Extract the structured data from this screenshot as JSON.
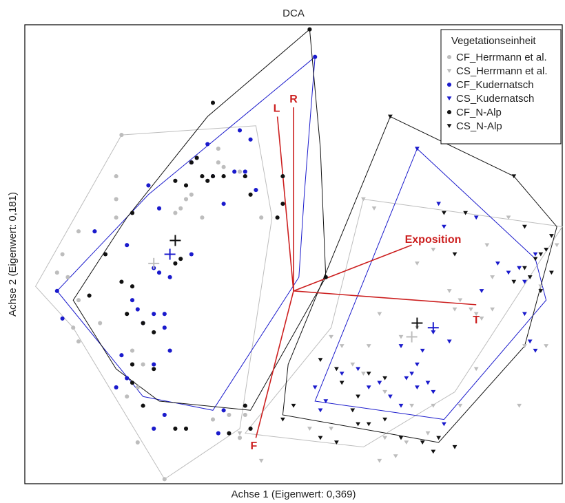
{
  "chart_data": {
    "type": "scatter",
    "title": "DCA",
    "xlabel": "Achse 1 (Eigenwert: 0,369)",
    "ylabel": "Achse 2 (Eigenwert: 0,181)",
    "grid": false,
    "axes_ticks_shown": false,
    "legend_position": "top-right",
    "legend_title": "Vegetationseinheit",
    "xlim": [
      0,
      100
    ],
    "ylim": [
      0,
      100
    ],
    "series": [
      {
        "name": "CF_Herrmann et al.",
        "marker": "circle",
        "color": "#bdbdbd",
        "points": [
          [
            18,
            76
          ],
          [
            17,
            67
          ],
          [
            17,
            62
          ],
          [
            17,
            58
          ],
          [
            29,
            60
          ],
          [
            30,
            62
          ],
          [
            28,
            59
          ],
          [
            33,
            58
          ],
          [
            44,
            58
          ],
          [
            7,
            50
          ],
          [
            8,
            45
          ],
          [
            10,
            40
          ],
          [
            9,
            34
          ],
          [
            10,
            31
          ],
          [
            14,
            35
          ],
          [
            20,
            29
          ],
          [
            20,
            26
          ],
          [
            22,
            26
          ],
          [
            21,
            21
          ],
          [
            19,
            19
          ],
          [
            24,
            12
          ],
          [
            21,
            9
          ],
          [
            26,
            1
          ],
          [
            35,
            14
          ],
          [
            38,
            15
          ],
          [
            40,
            10
          ],
          [
            41,
            15
          ],
          [
            36,
            73
          ],
          [
            40,
            68
          ],
          [
            36,
            70
          ],
          [
            37,
            69
          ],
          [
            31,
            63
          ],
          [
            6,
            46
          ],
          [
            10,
            55
          ]
        ]
      },
      {
        "name": "CS_Herrmann et al.",
        "marker": "triangle",
        "color": "#bdbdbd",
        "points": [
          [
            63,
            62
          ],
          [
            65,
            60
          ],
          [
            73,
            48
          ],
          [
            76,
            51
          ],
          [
            79,
            42
          ],
          [
            87,
            45
          ],
          [
            86,
            52
          ],
          [
            90,
            58
          ],
          [
            92,
            47
          ],
          [
            96,
            43
          ],
          [
            99,
            52
          ],
          [
            66,
            37
          ],
          [
            70,
            32
          ],
          [
            73,
            34
          ],
          [
            80,
            38
          ],
          [
            81,
            40
          ],
          [
            83,
            38
          ],
          [
            84,
            37
          ],
          [
            85,
            36
          ],
          [
            87,
            38
          ],
          [
            93,
            30
          ],
          [
            97,
            30
          ],
          [
            64,
            30
          ],
          [
            59,
            30
          ],
          [
            57,
            32
          ],
          [
            61,
            26
          ],
          [
            63,
            24
          ],
          [
            67,
            20
          ],
          [
            72,
            17
          ],
          [
            76,
            17
          ],
          [
            81,
            17
          ],
          [
            92,
            17
          ],
          [
            53,
            12
          ],
          [
            57,
            12
          ],
          [
            67,
            10
          ],
          [
            71,
            9
          ],
          [
            75,
            11
          ],
          [
            40,
            11
          ],
          [
            44,
            5
          ],
          [
            69,
            6
          ],
          [
            66,
            5
          ],
          [
            84,
            25
          ]
        ]
      },
      {
        "name": "CF_Kudernatsch",
        "marker": "circle",
        "color": "#1a1acc",
        "points": [
          [
            54,
            93
          ],
          [
            40,
            77
          ],
          [
            42,
            75
          ],
          [
            34,
            74
          ],
          [
            31,
            70
          ],
          [
            39,
            68
          ],
          [
            41,
            68
          ],
          [
            35,
            67
          ],
          [
            43,
            64
          ],
          [
            23,
            65
          ],
          [
            25,
            60
          ],
          [
            37,
            61
          ],
          [
            13,
            55
          ],
          [
            19,
            52
          ],
          [
            25,
            46
          ],
          [
            24,
            47
          ],
          [
            27,
            45
          ],
          [
            20,
            40
          ],
          [
            21,
            38
          ],
          [
            24,
            37
          ],
          [
            26,
            37
          ],
          [
            22,
            35
          ],
          [
            26,
            34
          ],
          [
            27,
            29
          ],
          [
            24,
            26
          ],
          [
            18,
            28
          ],
          [
            19,
            23
          ],
          [
            17,
            21
          ],
          [
            26,
            15
          ],
          [
            24,
            12
          ],
          [
            37,
            16
          ],
          [
            36,
            11
          ],
          [
            31,
            50
          ],
          [
            6,
            42
          ],
          [
            7,
            36
          ]
        ]
      },
      {
        "name": "CS_Kudernatsch",
        "marker": "triangle",
        "color": "#1a1acc",
        "points": [
          [
            73,
            73
          ],
          [
            77,
            61
          ],
          [
            78,
            56
          ],
          [
            84,
            58
          ],
          [
            88,
            48
          ],
          [
            95,
            50
          ],
          [
            92,
            47
          ],
          [
            90,
            46
          ],
          [
            93,
            44
          ],
          [
            85,
            42
          ],
          [
            93,
            37
          ],
          [
            94,
            31
          ],
          [
            95,
            29
          ],
          [
            76,
            33
          ],
          [
            74,
            29
          ],
          [
            79,
            31
          ],
          [
            70,
            30
          ],
          [
            73,
            26
          ],
          [
            72,
            24
          ],
          [
            71,
            23
          ],
          [
            66,
            22
          ],
          [
            64,
            21
          ],
          [
            68,
            19
          ],
          [
            75,
            22
          ],
          [
            73,
            21
          ],
          [
            70,
            17
          ],
          [
            76,
            20
          ],
          [
            56,
            18
          ],
          [
            62,
            25
          ],
          [
            59,
            24
          ],
          [
            54,
            21
          ],
          [
            55,
            16
          ],
          [
            78,
            13
          ]
        ]
      },
      {
        "name": "CF_N-Alp",
        "marker": "circle",
        "color": "#111111",
        "points": [
          [
            53,
            99
          ],
          [
            35,
            83
          ],
          [
            48,
            67
          ],
          [
            32,
            71
          ],
          [
            33,
            67
          ],
          [
            35,
            67
          ],
          [
            28,
            66
          ],
          [
            30,
            65
          ],
          [
            31,
            70
          ],
          [
            34,
            66
          ],
          [
            41,
            67
          ],
          [
            37,
            67
          ],
          [
            42,
            63
          ],
          [
            20,
            59
          ],
          [
            29,
            49
          ],
          [
            28,
            48
          ],
          [
            15,
            50
          ],
          [
            12,
            41
          ],
          [
            18,
            44
          ],
          [
            20,
            43
          ],
          [
            19,
            37
          ],
          [
            22,
            35
          ],
          [
            24,
            33
          ],
          [
            20,
            26
          ],
          [
            24,
            25
          ],
          [
            20,
            22
          ],
          [
            22,
            17
          ],
          [
            28,
            12
          ],
          [
            30,
            12
          ],
          [
            38,
            11
          ],
          [
            42,
            12
          ],
          [
            41,
            17
          ],
          [
            56,
            45
          ],
          [
            48,
            61
          ],
          [
            47,
            58
          ]
        ]
      },
      {
        "name": "CS_N-Alp",
        "marker": "triangle",
        "color": "#111111",
        "points": [
          [
            68,
            80
          ],
          [
            91,
            67
          ],
          [
            98,
            54
          ],
          [
            97,
            51
          ],
          [
            96,
            50
          ],
          [
            95,
            49
          ],
          [
            93,
            47
          ],
          [
            94,
            45
          ],
          [
            98,
            46
          ],
          [
            96,
            42
          ],
          [
            91,
            44
          ],
          [
            82,
            59
          ],
          [
            78,
            59
          ],
          [
            80,
            50
          ],
          [
            93,
            56
          ],
          [
            55,
            27
          ],
          [
            58,
            25
          ],
          [
            59,
            22
          ],
          [
            64,
            24
          ],
          [
            67,
            23
          ],
          [
            62,
            19
          ],
          [
            61,
            16
          ],
          [
            55,
            10
          ],
          [
            58,
            9
          ],
          [
            62,
            13
          ],
          [
            64,
            13
          ],
          [
            67,
            14
          ],
          [
            70,
            10
          ],
          [
            74,
            9
          ],
          [
            77,
            10
          ],
          [
            80,
            8
          ],
          [
            50,
            17
          ],
          [
            48,
            14
          ],
          [
            76,
            7
          ]
        ]
      }
    ],
    "hulls": [
      {
        "group": "CF_Herrmann et al.",
        "color": "#bdbdbd",
        "points": [
          [
            18,
            76
          ],
          [
            43,
            78
          ],
          [
            46,
            58
          ],
          [
            40,
            12
          ],
          [
            26,
            1
          ],
          [
            9,
            34
          ],
          [
            2,
            43
          ]
        ]
      },
      {
        "group": "CS_Herrmann et al.",
        "color": "#bdbdbd",
        "points": [
          [
            63,
            62
          ],
          [
            100,
            56
          ],
          [
            80,
            20
          ],
          [
            63,
            8
          ],
          [
            41,
            11
          ],
          [
            57,
            34
          ]
        ]
      },
      {
        "group": "CF_Kudernatsch",
        "color": "#1a1acc",
        "points": [
          [
            54,
            93
          ],
          [
            23,
            63
          ],
          [
            6,
            42
          ],
          [
            22,
            19
          ],
          [
            35,
            16
          ],
          [
            51,
            45
          ],
          [
            52,
            63
          ]
        ]
      },
      {
        "group": "CS_Kudernatsch",
        "color": "#1a1acc",
        "points": [
          [
            73,
            73
          ],
          [
            95,
            49
          ],
          [
            97,
            40
          ],
          [
            78,
            14
          ],
          [
            54,
            18
          ]
        ]
      },
      {
        "group": "CF_N-Alp",
        "color": "#111111",
        "points": [
          [
            53,
            99
          ],
          [
            34,
            80
          ],
          [
            19,
            58
          ],
          [
            9,
            40
          ],
          [
            17,
            25
          ],
          [
            25,
            18
          ],
          [
            42,
            16
          ],
          [
            56,
            45
          ],
          [
            55,
            73
          ]
        ]
      },
      {
        "group": "CS_N-Alp",
        "color": "#111111",
        "points": [
          [
            68,
            80
          ],
          [
            91,
            67
          ],
          [
            99,
            56
          ],
          [
            93,
            30
          ],
          [
            77,
            9
          ],
          [
            48,
            15
          ],
          [
            49,
            26
          ]
        ]
      }
    ],
    "centroids": [
      {
        "group": "CF_Herrmann et al.",
        "color": "#bdbdbd",
        "x": 24,
        "y": 48
      },
      {
        "group": "CF_Kudernatsch",
        "color": "#1a1acc",
        "x": 27,
        "y": 50
      },
      {
        "group": "CF_N-Alp",
        "color": "#111111",
        "x": 28,
        "y": 53
      },
      {
        "group": "CS_Herrmann et al.",
        "color": "#bdbdbd",
        "x": 72,
        "y": 32
      },
      {
        "group": "CS_N-Alp",
        "color": "#111111",
        "x": 73,
        "y": 35
      },
      {
        "group": "CS_Kudernatsch",
        "color": "#1a1acc",
        "x": 76,
        "y": 34
      }
    ],
    "vectors": {
      "color": "#cc1f1f",
      "origin": [
        50,
        42
      ],
      "items": [
        {
          "label": "L",
          "x": 47,
          "y": 80
        },
        {
          "label": "R",
          "x": 50,
          "y": 82
        },
        {
          "label": "Exposition",
          "x": 72,
          "y": 52
        },
        {
          "label": "T",
          "x": 84,
          "y": 39
        },
        {
          "label": "F",
          "x": 43,
          "y": 10
        }
      ]
    }
  }
}
